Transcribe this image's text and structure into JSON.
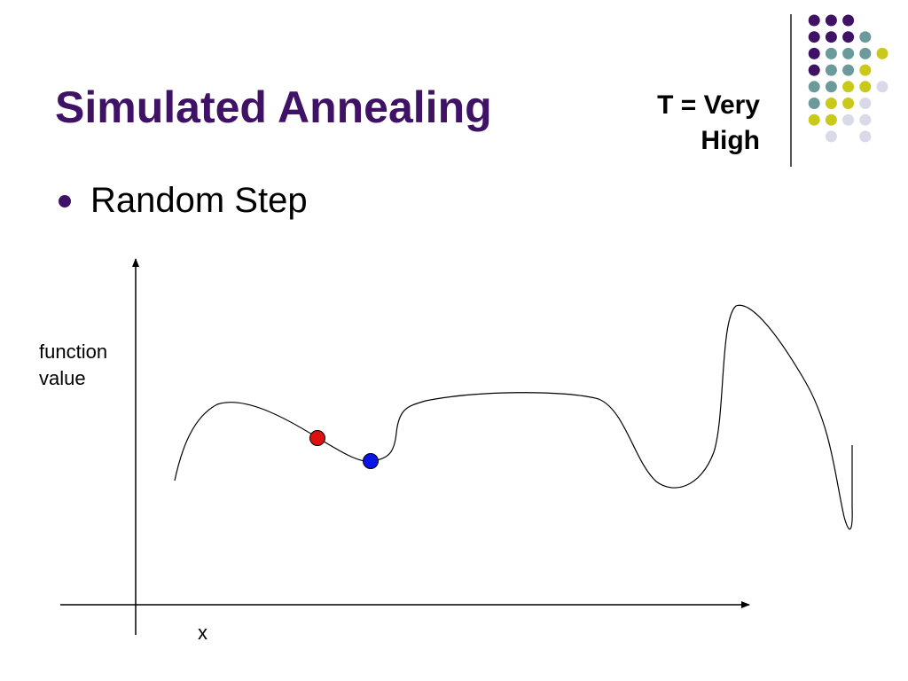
{
  "slide": {
    "title": "Simulated Annealing",
    "temperature_label": "T = Very\nHigh",
    "bullets": [
      "Random Step"
    ]
  },
  "diagram": {
    "y_label": "function\nvalue",
    "x_label": "x",
    "current_point_color": "#e01010",
    "proposed_point_color": "#0a14e6"
  },
  "decoration": {
    "dot_colors": [
      "#3f1266",
      "#6b9a9b",
      "#c9c91a",
      "#d9d9e8"
    ]
  }
}
